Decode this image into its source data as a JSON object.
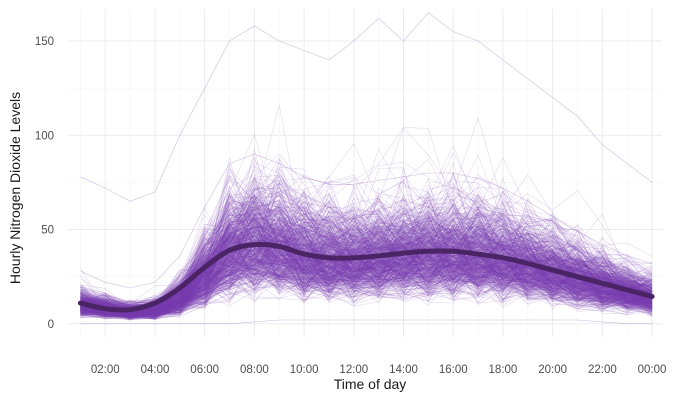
{
  "chart_data": {
    "type": "line",
    "title": "",
    "xlabel": "Time of day",
    "ylabel": "Hourly Nitrogen Dioxide Levels",
    "x_unit": "hour of day (00:00 at end = 24)",
    "xlim": [
      0.5,
      24.4
    ],
    "ylim": [
      -7,
      167
    ],
    "x_ticks": [
      {
        "value": 2,
        "label": "02:00"
      },
      {
        "value": 4,
        "label": "04:00"
      },
      {
        "value": 6,
        "label": "06:00"
      },
      {
        "value": 8,
        "label": "08:00"
      },
      {
        "value": 10,
        "label": "10:00"
      },
      {
        "value": 12,
        "label": "12:00"
      },
      {
        "value": 14,
        "label": "14:00"
      },
      {
        "value": 16,
        "label": "16:00"
      },
      {
        "value": 18,
        "label": "18:00"
      },
      {
        "value": 20,
        "label": "20:00"
      },
      {
        "value": 22,
        "label": "22:00"
      },
      {
        "value": 24,
        "label": "00:00"
      }
    ],
    "y_ticks": [
      {
        "value": 0,
        "label": "0"
      },
      {
        "value": 50,
        "label": "50"
      },
      {
        "value": 100,
        "label": "100"
      },
      {
        "value": 150,
        "label": "150"
      }
    ],
    "grid": true,
    "legend": "none",
    "series": [
      {
        "role": "individual daily profiles (many thin translucent lines, spread approximated)",
        "color": "#7a3fb0",
        "x": [
          1,
          2,
          3,
          4,
          5,
          6,
          7,
          8,
          9,
          10,
          11,
          12,
          13,
          14,
          15,
          16,
          17,
          18,
          19,
          20,
          21,
          22,
          23,
          24
        ],
        "min": [
          0,
          0,
          0,
          0,
          0,
          0,
          0,
          1,
          2,
          2,
          2,
          2,
          2,
          2,
          2,
          2,
          2,
          2,
          2,
          2,
          2,
          1,
          0,
          0
        ],
        "p10": [
          2,
          2,
          1,
          1,
          2,
          5,
          10,
          14,
          15,
          13,
          12,
          12,
          12,
          12,
          13,
          13,
          13,
          12,
          11,
          10,
          8,
          6,
          4,
          3
        ],
        "median": [
          10,
          8,
          6,
          7,
          13,
          25,
          38,
          42,
          40,
          36,
          34,
          34,
          35,
          36,
          37,
          37,
          36,
          34,
          31,
          28,
          24,
          20,
          17,
          14
        ],
        "p90": [
          28,
          22,
          19,
          22,
          36,
          62,
          85,
          90,
          85,
          78,
          74,
          74,
          76,
          78,
          80,
          80,
          77,
          72,
          65,
          57,
          49,
          42,
          36,
          32
        ],
        "max": [
          78,
          72,
          65,
          70,
          100,
          125,
          150,
          158,
          150,
          145,
          140,
          150,
          162,
          150,
          165,
          155,
          150,
          140,
          130,
          120,
          110,
          95,
          85,
          75
        ]
      },
      {
        "role": "smoothed trend",
        "color": "#4a2464",
        "x": [
          1,
          2,
          3,
          4,
          5,
          6,
          7,
          8,
          9,
          10,
          11,
          12,
          13,
          14,
          15,
          16,
          17,
          18,
          19,
          20,
          21,
          22,
          23,
          24
        ],
        "values": [
          11,
          8,
          7.5,
          11,
          19,
          30,
          39,
          42,
          41,
          37,
          35,
          35,
          36,
          37.5,
          38.5,
          38.5,
          37,
          35,
          32,
          28.5,
          25,
          21.5,
          18,
          14.5
        ]
      }
    ]
  }
}
